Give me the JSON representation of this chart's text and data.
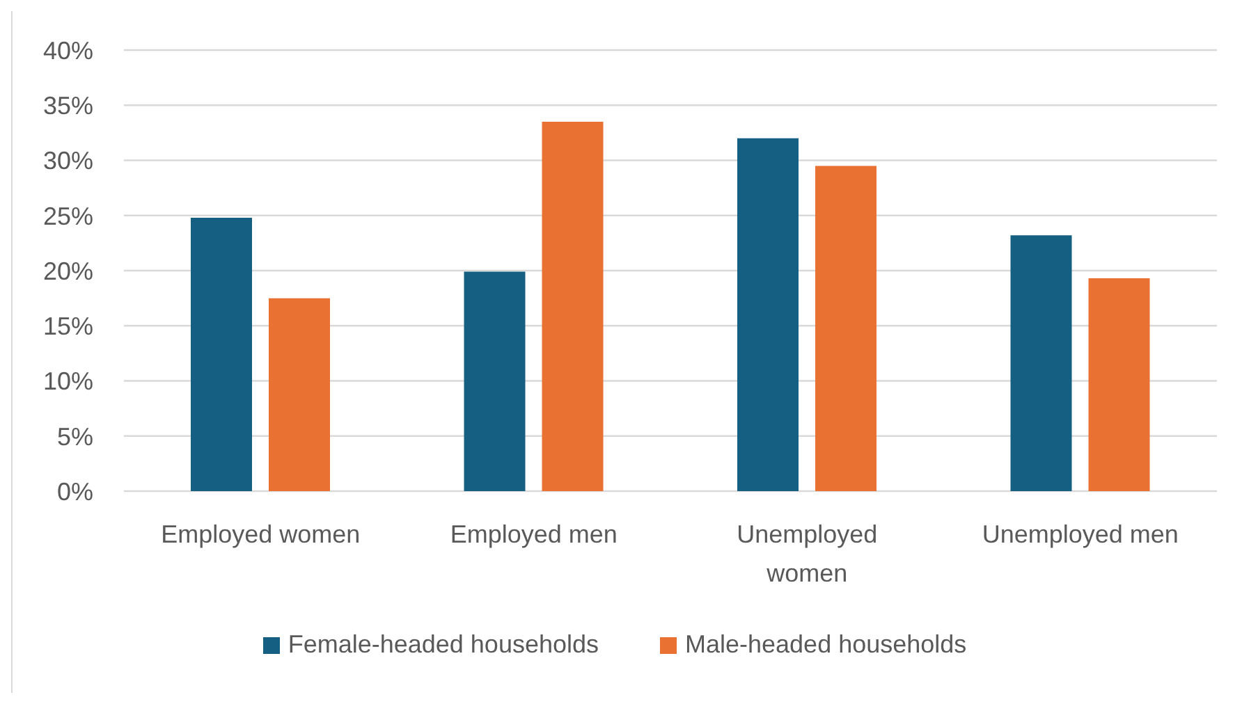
{
  "chart_data": {
    "type": "bar",
    "categories": [
      "Employed women",
      "Employed men",
      "Unemployed women",
      "Unemployed men"
    ],
    "series": [
      {
        "name": "Female-headed households",
        "color": "#156082",
        "values": [
          24.8,
          19.9,
          32.0,
          23.2
        ]
      },
      {
        "name": "Male-headed households",
        "color": "#e97132",
        "values": [
          17.5,
          33.5,
          29.5,
          19.3
        ]
      }
    ],
    "ylim": [
      0,
      40
    ],
    "yticks": [
      {
        "value": 0,
        "label": "0%"
      },
      {
        "value": 5,
        "label": "5%"
      },
      {
        "value": 10,
        "label": "10%"
      },
      {
        "value": 15,
        "label": "15%"
      },
      {
        "value": 20,
        "label": "20%"
      },
      {
        "value": 25,
        "label": "25%"
      },
      {
        "value": 30,
        "label": "30%"
      },
      {
        "value": 35,
        "label": "35%"
      },
      {
        "value": 40,
        "label": "40%"
      }
    ],
    "grid": "y",
    "legend": "bottom"
  }
}
